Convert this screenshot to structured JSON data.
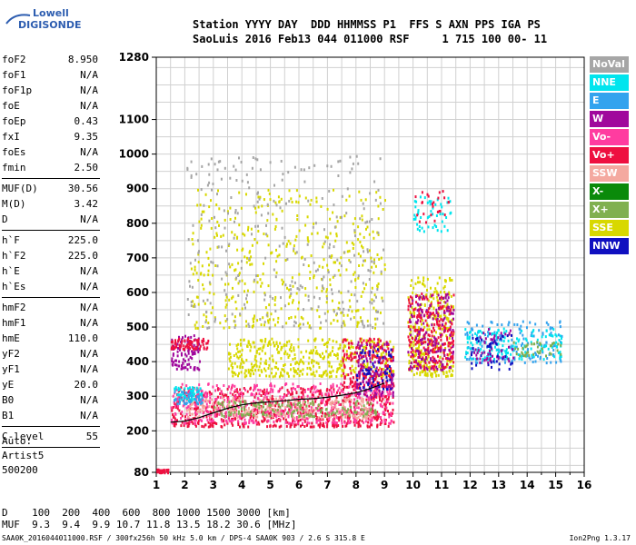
{
  "logo": {
    "line1": "Lowell",
    "line2": "DIGISONDE"
  },
  "header": {
    "line1": "Station YYYY DAY  DDD HHMMSS P1  FFS S AXN PPS IGA PS",
    "line2": "SaoLuis 2016 Feb13 044 011000 RSF     1 715 100 00- 11"
  },
  "params": [
    {
      "group": [
        {
          "key": "foF2",
          "value": "8.950"
        },
        {
          "key": "foF1",
          "value": "N/A"
        },
        {
          "key": "foF1p",
          "value": "N/A"
        },
        {
          "key": "foE",
          "value": "N/A"
        },
        {
          "key": "foEp",
          "value": "0.43"
        },
        {
          "key": "fxI",
          "value": "9.35"
        },
        {
          "key": "foEs",
          "value": "N/A"
        },
        {
          "key": "fmin",
          "value": "2.50"
        }
      ]
    },
    {
      "group": [
        {
          "key": "MUF(D)",
          "value": "30.56"
        },
        {
          "key": "M(D)",
          "value": "3.42"
        },
        {
          "key": "D",
          "value": "N/A"
        }
      ]
    },
    {
      "group": [
        {
          "key": "h`F",
          "value": "225.0"
        },
        {
          "key": "h`F2",
          "value": "225.0"
        },
        {
          "key": "h`E",
          "value": "N/A"
        },
        {
          "key": "h`Es",
          "value": "N/A"
        }
      ]
    },
    {
      "group": [
        {
          "key": "hmF2",
          "value": "N/A"
        },
        {
          "key": "hmF1",
          "value": "N/A"
        },
        {
          "key": "hmE",
          "value": "110.0"
        },
        {
          "key": "yF2",
          "value": "N/A"
        },
        {
          "key": "yF1",
          "value": "N/A"
        },
        {
          "key": "yE",
          "value": "20.0"
        },
        {
          "key": "B0",
          "value": "N/A"
        },
        {
          "key": "B1",
          "value": "N/A"
        }
      ]
    },
    {
      "group": [
        {
          "key": "C-level",
          "value": "55"
        }
      ]
    }
  ],
  "auto": {
    "line1": "Auto:",
    "line2": "Artist5",
    "line3": "500200"
  },
  "legend": [
    {
      "label": "NoVal",
      "color": "#a6a6a6"
    },
    {
      "label": "NNE",
      "color": "#00e5ee"
    },
    {
      "label": "E",
      "color": "#33a3ee"
    },
    {
      "label": "W",
      "color": "#a0089c"
    },
    {
      "label": "Vo-",
      "color": "#ff3ca0"
    },
    {
      "label": "Vo+",
      "color": "#ee1040"
    },
    {
      "label": "SSW",
      "color": "#f4a9a0"
    },
    {
      "label": "X-",
      "color": "#0a8a0a"
    },
    {
      "label": "X+",
      "color": "#80b050"
    },
    {
      "label": "SSE",
      "color": "#d8d800"
    },
    {
      "label": "NNW",
      "color": "#1010c0"
    }
  ],
  "dmuf": {
    "line1": "D    100  200  400  600  800 1000 1500 3000 [km]",
    "line2": "MUF  9.3  9.4  9.9 10.7 11.8 13.5 18.2 30.6 [MHz]"
  },
  "footer": "SAA0K_2016044011000.RSF / 300fx256h 50 kHz 5.0 km / DPS-4 SAA0K 903 / 2.6 S 315.8 E",
  "version": "Ion2Png 1.3.17",
  "chart_data": {
    "type": "scatter",
    "xlim": [
      1,
      16
    ],
    "ylim": [
      80,
      1280
    ],
    "x_ticks": [
      1,
      2,
      3,
      4,
      5,
      6,
      7,
      8,
      9,
      10,
      11,
      12,
      13,
      14,
      15,
      16
    ],
    "y_ticks": [
      80,
      200,
      300,
      400,
      500,
      600,
      700,
      800,
      900,
      1000,
      1100,
      1280
    ],
    "grid": true,
    "legend_position": "right",
    "trace": {
      "x": [
        1.5,
        2.0,
        2.5,
        3.0,
        3.5,
        4.0,
        4.5,
        5.0,
        5.5,
        6.0,
        6.5,
        7.0,
        7.5,
        8.0,
        8.5,
        9.0
      ],
      "y": [
        225,
        228,
        238,
        252,
        265,
        275,
        281,
        284,
        287,
        291,
        293,
        297,
        303,
        310,
        322,
        338
      ]
    },
    "clusters": [
      {
        "series": "Vo+",
        "x": [
          1.5,
          9.3
        ],
        "y": [
          215,
          330
        ],
        "n": 700
      },
      {
        "series": "Vo-",
        "x": [
          1.5,
          9.3
        ],
        "y": [
          225,
          340
        ],
        "n": 500
      },
      {
        "series": "SSW",
        "x": [
          2.0,
          8.5
        ],
        "y": [
          240,
          300
        ],
        "n": 250
      },
      {
        "series": "X+",
        "x": [
          3.0,
          8.8
        ],
        "y": [
          245,
          290
        ],
        "n": 150
      },
      {
        "series": "SSE",
        "x": [
          3.5,
          9.3
        ],
        "y": [
          360,
          470
        ],
        "n": 450
      },
      {
        "series": "SSE",
        "x": [
          2.2,
          9.0
        ],
        "y": [
          500,
          900
        ],
        "n": 450
      },
      {
        "series": "Vo+",
        "x": [
          7.5,
          9.3
        ],
        "y": [
          330,
          470
        ],
        "n": 200
      },
      {
        "series": "W",
        "x": [
          8.0,
          9.3
        ],
        "y": [
          300,
          460
        ],
        "n": 120
      },
      {
        "series": "NNW",
        "x": [
          8.0,
          9.3
        ],
        "y": [
          320,
          440
        ],
        "n": 60
      },
      {
        "series": "NoVal",
        "x": [
          2.0,
          9.0
        ],
        "y": [
          500,
          1000
        ],
        "n": 300
      },
      {
        "series": "SSE",
        "x": [
          9.8,
          11.4
        ],
        "y": [
          360,
          650
        ],
        "n": 350
      },
      {
        "series": "Vo+",
        "x": [
          9.8,
          11.4
        ],
        "y": [
          380,
          600
        ],
        "n": 250
      },
      {
        "series": "W",
        "x": [
          9.8,
          11.4
        ],
        "y": [
          380,
          600
        ],
        "n": 150
      },
      {
        "series": "NNE",
        "x": [
          10.0,
          11.3
        ],
        "y": [
          780,
          880
        ],
        "n": 50
      },
      {
        "series": "Vo+",
        "x": [
          10.0,
          11.4
        ],
        "y": [
          800,
          900
        ],
        "n": 25
      },
      {
        "series": "E",
        "x": [
          11.8,
          15.2
        ],
        "y": [
          400,
          520
        ],
        "n": 160
      },
      {
        "series": "NNE",
        "x": [
          11.8,
          15.2
        ],
        "y": [
          410,
          500
        ],
        "n": 140
      },
      {
        "series": "W",
        "x": [
          12.0,
          13.5
        ],
        "y": [
          400,
          500
        ],
        "n": 50
      },
      {
        "series": "NNW",
        "x": [
          12.0,
          13.5
        ],
        "y": [
          380,
          480
        ],
        "n": 40
      },
      {
        "series": "X+",
        "x": [
          13.5,
          15.2
        ],
        "y": [
          420,
          460
        ],
        "n": 40
      },
      {
        "series": "W",
        "x": [
          1.5,
          2.5
        ],
        "y": [
          380,
          480
        ],
        "n": 100
      },
      {
        "series": "Vo+",
        "x": [
          1.5,
          2.8
        ],
        "y": [
          440,
          470
        ],
        "n": 80
      },
      {
        "series": "NNE",
        "x": [
          1.6,
          2.6
        ],
        "y": [
          290,
          330
        ],
        "n": 60
      },
      {
        "series": "E",
        "x": [
          1.6,
          2.6
        ],
        "y": [
          280,
          320
        ],
        "n": 40
      },
      {
        "series": "Vo+",
        "x": [
          1.0,
          1.4
        ],
        "y": [
          82,
          92
        ],
        "n": 40
      }
    ]
  }
}
